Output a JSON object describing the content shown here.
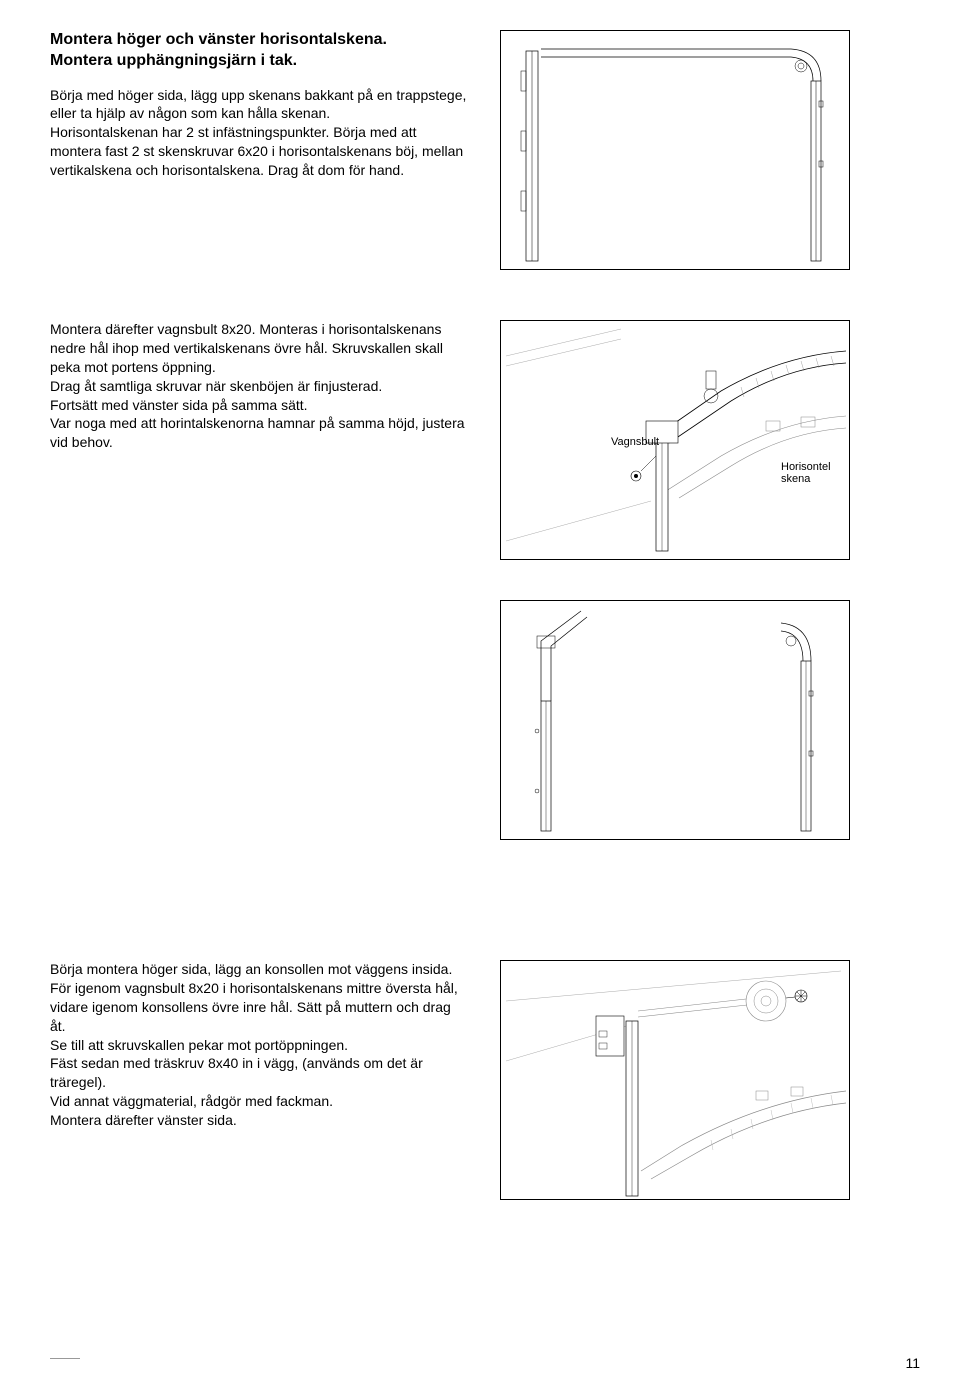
{
  "section1": {
    "heading": "Montera höger och vänster horisontalskena.\nMontera upphängningsjärn i tak.",
    "body": "Börja med höger sida, lägg upp skenans bakkant på en trappstege, eller ta hjälp av någon som kan hålla skenan.\nHorisontalskenan har 2 st infästningspunkter. Börja med att montera fast 2 st skenskruvar 6x20 i horisontalskenans böj, mellan vertikalskena och horisontalskena. Drag åt dom för hand."
  },
  "section2": {
    "body": "Montera därefter vagnsbult 8x20. Monteras i horisontalskenans nedre hål ihop med vertikalskenans övre hål. Skruvskallen skall peka mot portens öppning.\nDrag åt samtliga skruvar när skenböjen är finjusterad.\nFortsätt med vänster sida på samma sätt.\nVar noga med att horintalskenorna hamnar på samma höjd, justera vid behov.",
    "label_vagnsbult": "Vagnsbult",
    "label_horisontel": "Horisontel skena"
  },
  "section3": {
    "body": "Börja montera höger sida, lägg an konsollen mot väggens insida. För igenom vagnsbult 8x20 i horisontalskenans mittre översta hål, vidare igenom konsollens övre inre hål. Sätt på muttern och drag åt.\nSe till att skruvskallen pekar mot portöppningen.\nFäst sedan med träskruv 8x40 in i vägg, (används om det är träregel).\nVid annat väggmaterial, rådgör med fackman.\nMontera därefter vänster sida."
  },
  "page_number": "11",
  "colors": {
    "text": "#000000",
    "bg": "#ffffff",
    "line": "#000000",
    "light": "#cccccc"
  }
}
